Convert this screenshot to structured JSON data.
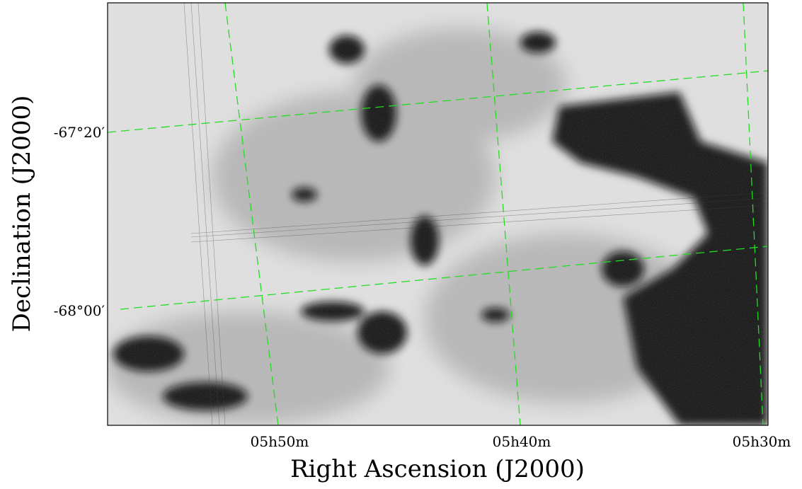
{
  "chart_data": {
    "type": "image",
    "xlabel": "Right Ascension (J2000)",
    "ylabel": "Declination (J2000)",
    "x_tick_labels": [
      "05h50m",
      "05h40m",
      "05h30m"
    ],
    "y_tick_labels": [
      "-67°20′",
      "-68°00′"
    ],
    "grid": true,
    "grid_color": "#22dd22",
    "colormap": "gray_r"
  }
}
